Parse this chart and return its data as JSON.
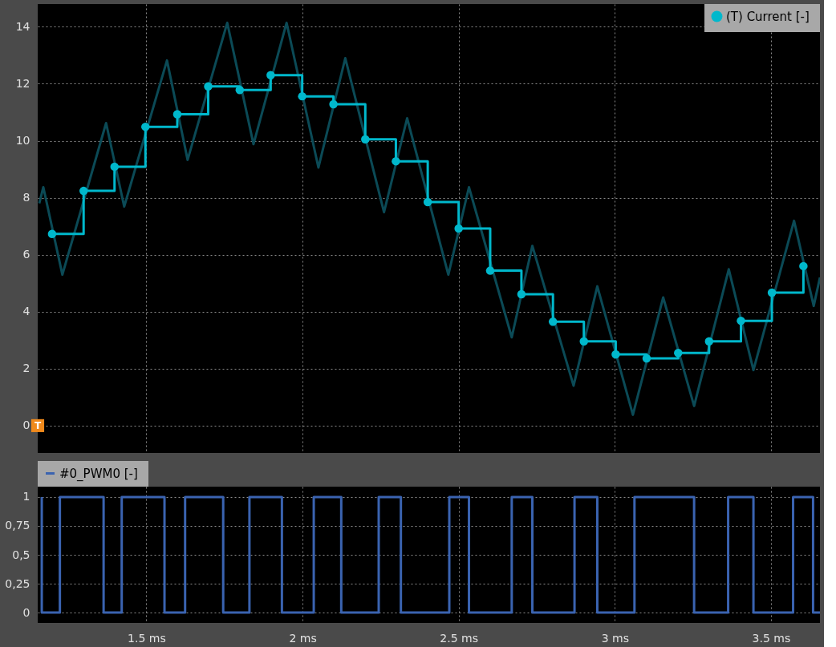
{
  "chart_data": [
    {
      "type": "step",
      "xlim": [
        1.152,
        3.657
      ],
      "ylim": [
        -0.96,
        14.8
      ],
      "xticks": [
        {
          "value": 1.5,
          "label": null
        },
        {
          "value": 2,
          "label": null
        },
        {
          "value": 2.5,
          "label": null
        },
        {
          "value": 3,
          "label": null
        },
        {
          "value": 3.5,
          "label": null
        }
      ],
      "yticks": [
        0,
        2,
        4,
        6,
        8,
        10,
        12,
        14
      ],
      "grid": true,
      "legend": "top right",
      "tick_labels": "y",
      "marker": "circle",
      "annotations": [
        {
          "text": "T",
          "x": 1.152,
          "y": 0
        }
      ],
      "series": [
        {
          "name": "(T) Current  [-]",
          "color": "#00b8cc",
          "x": [
            1.198,
            1.299,
            1.398,
            1.497,
            1.599,
            1.698,
            1.799,
            1.898,
            1.999,
            2.099,
            2.201,
            2.299,
            2.401,
            2.5,
            2.601,
            2.701,
            2.802,
            2.901,
            3.003,
            3.102,
            3.203,
            3.302,
            3.404,
            3.503,
            3.604
          ],
          "values": [
            6.73,
            8.24,
            9.09,
            10.49,
            10.93,
            11.91,
            11.78,
            12.3,
            11.56,
            11.28,
            10.05,
            9.28,
            7.85,
            6.92,
            5.44,
            4.61,
            3.65,
            2.96,
            2.5,
            2.36,
            2.55,
            2.96,
            3.68,
            4.67,
            5.6
          ]
        },
        {
          "type": "line",
          "marker": "none",
          "color": "#0b4a56",
          "x": [
            1.157,
            1.17,
            1.231,
            1.371,
            1.429,
            1.566,
            1.632,
            1.759,
            1.843,
            1.949,
            2.051,
            2.137,
            2.261,
            2.335,
            2.467,
            2.533,
            2.67,
            2.736,
            2.868,
            2.944,
            3.058,
            3.155,
            3.254,
            3.365,
            3.444,
            3.574,
            3.637,
            3.657
          ],
          "values": [
            7.8,
            8.37,
            5.3,
            10.62,
            7.69,
            12.82,
            9.33,
            14.14,
            9.88,
            14.14,
            9.06,
            12.9,
            7.49,
            10.79,
            5.3,
            8.37,
            3.1,
            6.31,
            1.4,
            4.89,
            0.38,
            4.5,
            0.69,
            5.49,
            1.95,
            7.19,
            4.2,
            5.2
          ]
        }
      ]
    },
    {
      "type": "step",
      "xlim": [
        1.152,
        3.657
      ],
      "ylim": [
        -0.09,
        1.09
      ],
      "xticks": [
        {
          "value": 1.5,
          "label": "1.5 ms"
        },
        {
          "value": 2,
          "label": "2 ms"
        },
        {
          "value": 2.5,
          "label": "2.5 ms"
        },
        {
          "value": 3,
          "label": "3 ms"
        },
        {
          "value": 3.5,
          "label": "3.5 ms"
        }
      ],
      "yticks": [
        0,
        {
          "value": 0.25,
          "label": "0,25"
        },
        {
          "value": 0.5,
          "label": "0,5"
        },
        {
          "value": 0.75,
          "label": "0,75"
        },
        1
      ],
      "grid": true,
      "legend": "top",
      "marker": "none",
      "series": [
        {
          "name": "#0_PWM0  [-]",
          "color": "#3a63b0",
          "x": [
            1.165,
            1.165,
            1.223,
            1.363,
            1.421,
            1.558,
            1.624,
            1.746,
            1.83,
            1.934,
            2.036,
            2.124,
            2.244,
            2.315,
            2.47,
            2.533,
            2.67,
            2.736,
            2.871,
            2.944,
            3.063,
            3.254,
            3.363,
            3.444,
            3.571,
            3.635,
            3.657
          ],
          "values": [
            1,
            0,
            1,
            0,
            1,
            0,
            1,
            0,
            1,
            0,
            1,
            0,
            1,
            0,
            1,
            0,
            1,
            0,
            1,
            0,
            1,
            0,
            1,
            0,
            1,
            0,
            0
          ]
        }
      ]
    }
  ]
}
